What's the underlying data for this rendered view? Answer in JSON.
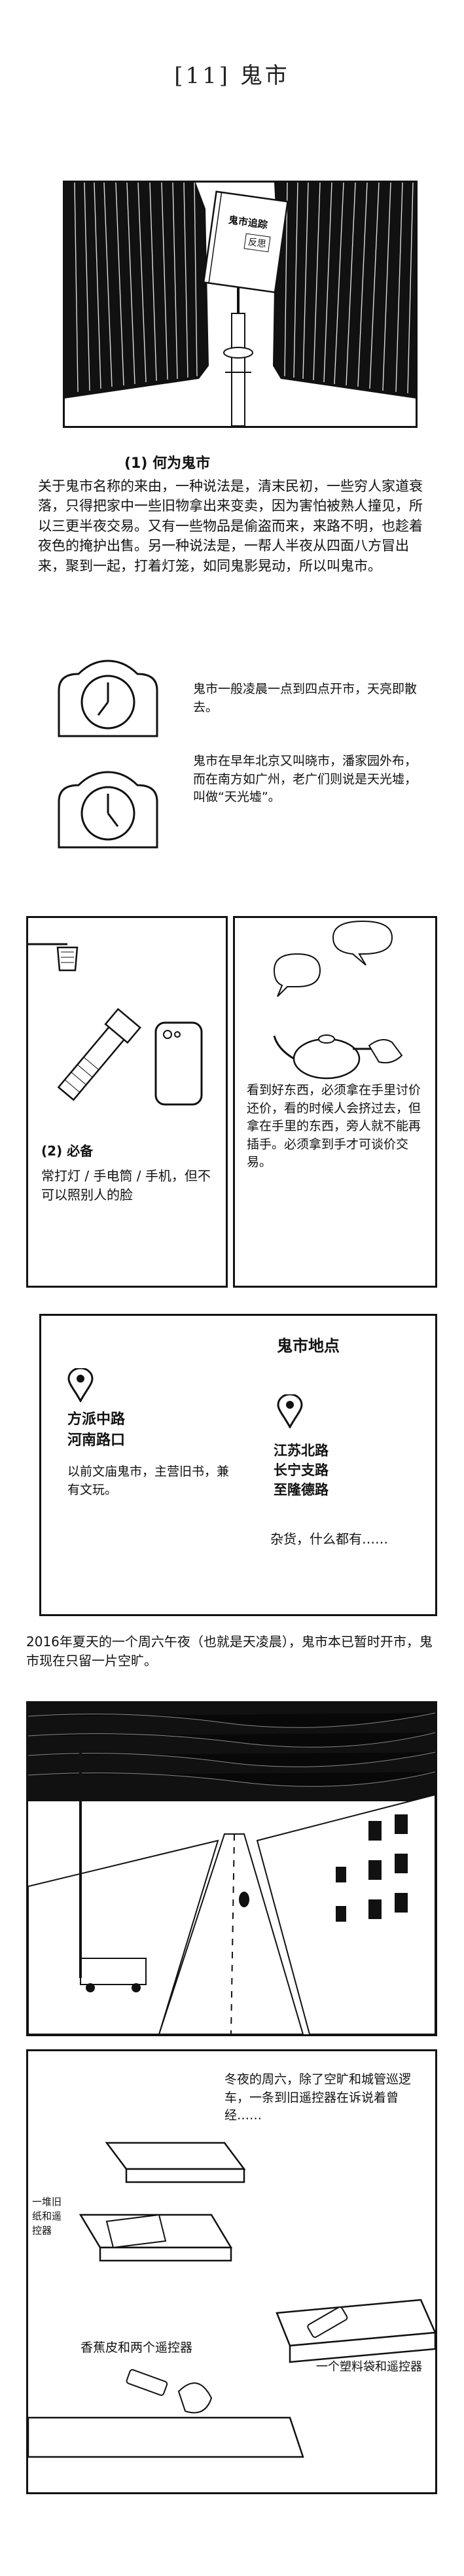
{
  "title": "[11] 鬼市",
  "panel1": {
    "book_title": "鬼市追踪",
    "book_subtitle": "反思"
  },
  "section1": {
    "heading": "(1) 何为鬼市",
    "paragraph": "关于鬼市名称的来由，一种说法是，清末民初，一些穷人家道衰落，只得把家中一些旧物拿出来变卖，因为害怕被熟人撞见，所以三更半夜交易。又有一些物品是偷盗而来，来路不明，也趁着夜色的掩护出售。另一种说法是，一帮人半夜从四面八方冒出来，聚到一起，打着灯笼，如同鬼影晃动，所以叫鬼市。"
  },
  "clocks_note": {
    "line1": "鬼市一般凌晨一点到四点开市，天亮即散去。",
    "line2": "鬼市在早年北京又叫晓市，潘家园外布，而在南方如广州，老广们则说是天光墟，叫做“天光墟”。"
  },
  "section2": {
    "heading": "(2) 必备",
    "caption": "常打灯 / 手电筒 / 手机，但不可以照别人的脸",
    "right_caption": "看到好东西，必须拿在手里讨价还价，看的时候人会挤过去，但拿在手里的东西，旁人就不能再插手。必须拿到手才可谈价交易。"
  },
  "map_panel": {
    "heading": "鬼市地点",
    "loc1_line1": "方派中路",
    "loc1_line2": "河南路口",
    "loc1_note": "以前文庙鬼市，主营旧书，兼有文玩。",
    "loc2_line1": "江苏北路",
    "loc2_line2": "长宁支路",
    "loc2_line3": "至隆德路",
    "loc2_note": "杂货，什么都有……"
  },
  "intro_2016": "2016年夏天的一个周六午夜（也就是天凌晨），鬼市本已暂时开市，鬼市现在只留一片空旷。",
  "last_panel": {
    "top_right": "冬夜的周六，除了空旷和城管巡逻车，一条到旧遥控器在诉说着曾经……",
    "left_side": "一堆旧纸和遥控器",
    "bottom_left": "香蕉皮和两个遥控器",
    "bottom_right": "一个塑料袋和遥控器"
  }
}
